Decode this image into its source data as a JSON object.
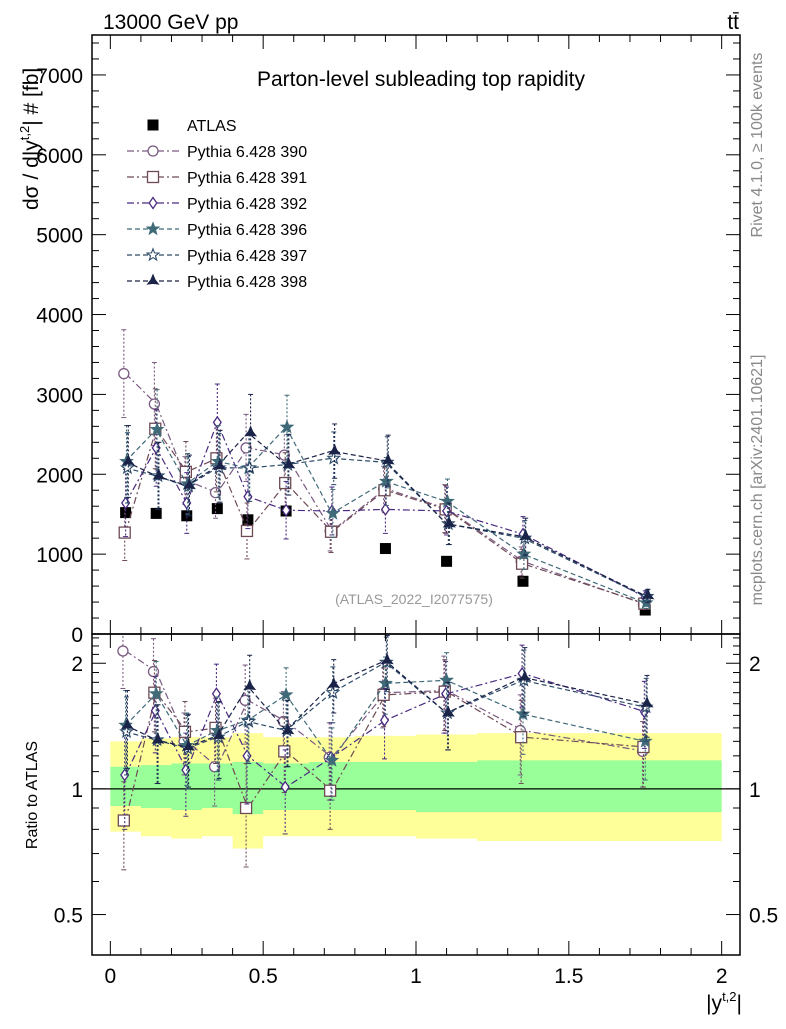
{
  "header": {
    "energy_label": "13000 GeV pp",
    "process_label": "tt̄"
  },
  "side_labels": {
    "rivet": "Rivet 4.1.0, ≥ 100k events",
    "mcplots": "mcplots.cern.ch [arXiv:2401.10621]"
  },
  "colors": {
    "ATLAS": "#000000",
    "s390": "#7a5a82",
    "s391": "#6e4a55",
    "s392": "#4a2a80",
    "s396": "#3f6a78",
    "s397": "#2c4a68",
    "s398": "#1a2348",
    "band_inner": "#99ff99",
    "band_outer": "#ffff99"
  },
  "chart_data": [
    {
      "type": "line",
      "panel": "main",
      "title": "Parton-level subleading top rapidity",
      "ylabel": "dσ / d|y^{t,2}| # [fb]",
      "ylabel_parts": {
        "main": "dσ / d|y",
        "sup": "t,2",
        "tail": "| # [fb]"
      },
      "watermark": "(ATLAS_2022_I2077575)",
      "xlim": [
        -0.06,
        2.06
      ],
      "ylim": [
        0,
        7500
      ],
      "yticks": [
        0,
        1000,
        2000,
        3000,
        4000,
        5000,
        6000,
        7000
      ],
      "ytick_labels": [
        "0",
        "1000",
        "2000",
        "3000",
        "4000",
        "5000",
        "6000",
        "7000"
      ],
      "x": [
        0.05,
        0.15,
        0.25,
        0.35,
        0.45,
        0.575,
        0.725,
        0.9,
        1.1,
        1.35,
        1.75
      ],
      "series": [
        {
          "name": "ATLAS",
          "key": "ATLAS",
          "marker": "square-filled",
          "line": "none",
          "values": [
            1520,
            1510,
            1480,
            1570,
            1430,
            1540,
            1290,
            1070,
            910,
            660,
            300
          ]
        },
        {
          "name": "Pythia 6.428 390",
          "key": "s390",
          "marker": "circle-open",
          "line": "dashdot",
          "values": [
            3260,
            2880,
            1920,
            1770,
            2330,
            2240,
            1290,
            1820,
            1570,
            910,
            370
          ],
          "err": [
            550,
            520,
            300,
            320,
            420,
            360,
            250,
            280,
            300,
            180,
            60
          ]
        },
        {
          "name": "Pythia 6.428 391",
          "key": "s391",
          "marker": "square-open",
          "line": "dashdot",
          "values": [
            1270,
            2570,
            2030,
            2200,
            1290,
            1890,
            1280,
            1800,
            1560,
            880,
            380
          ],
          "err": [
            350,
            500,
            380,
            420,
            350,
            380,
            260,
            280,
            300,
            180,
            70
          ]
        },
        {
          "name": "Pythia 6.428 392",
          "key": "s392",
          "marker": "diamond-open",
          "line": "dashdot",
          "values": [
            1640,
            2330,
            1640,
            2650,
            1720,
            1550,
            1540,
            1560,
            1540,
            1250,
            460
          ],
          "err": [
            420,
            480,
            380,
            480,
            400,
            360,
            300,
            300,
            300,
            220,
            80
          ]
        },
        {
          "name": "Pythia 6.428 396",
          "key": "s396",
          "marker": "star-filled",
          "line": "dashed",
          "values": [
            2160,
            2560,
            1880,
            2160,
            2080,
            2590,
            1510,
            1910,
            1660,
            1000,
            390
          ],
          "err": [
            450,
            500,
            380,
            450,
            420,
            400,
            300,
            300,
            280,
            190,
            70
          ]
        },
        {
          "name": "Pythia 6.428 397",
          "key": "s397",
          "marker": "star-open",
          "line": "dashed",
          "values": [
            2080,
            1980,
            1850,
            2080,
            2080,
            2120,
            2200,
            2150,
            1380,
            1200,
            470
          ],
          "err": [
            440,
            420,
            370,
            430,
            420,
            380,
            330,
            320,
            260,
            220,
            80
          ]
        },
        {
          "name": "Pythia 6.428 398",
          "key": "s398",
          "marker": "tri-down-filled",
          "line": "dashed",
          "values": [
            2160,
            1980,
            1860,
            2100,
            2520,
            2120,
            2290,
            2170,
            1380,
            1220,
            480
          ],
          "err": [
            450,
            420,
            380,
            450,
            480,
            380,
            340,
            320,
            260,
            230,
            80
          ]
        }
      ]
    },
    {
      "type": "line",
      "panel": "ratio",
      "ylabel": "Ratio to ATLAS",
      "xlabel": "|y^{t,2}|",
      "xlabel_parts": {
        "main": "|y",
        "sup": "t,2",
        "tail": "|"
      },
      "xlim": [
        -0.06,
        2.06
      ],
      "ylim": [
        0.4,
        2.35
      ],
      "scale": "log",
      "yticks": [
        0.5,
        1,
        2
      ],
      "ytick_labels": [
        "0.5",
        "1",
        "2"
      ],
      "xticks": [
        0,
        0.5,
        1,
        1.5,
        2
      ],
      "xtick_labels": [
        "0",
        "0.5",
        "1",
        "1.5",
        "2"
      ],
      "x": [
        0.05,
        0.15,
        0.25,
        0.35,
        0.45,
        0.575,
        0.725,
        0.9,
        1.1,
        1.35,
        1.75
      ],
      "band_edges": [
        0,
        0.1,
        0.2,
        0.3,
        0.4,
        0.5,
        0.65,
        0.8,
        1.0,
        1.2,
        1.5,
        2.0
      ],
      "band_inner": [
        [
          0.91,
          1.13
        ],
        [
          0.9,
          1.14
        ],
        [
          0.89,
          1.15
        ],
        [
          0.9,
          1.15
        ],
        [
          0.87,
          1.16
        ],
        [
          0.89,
          1.15
        ],
        [
          0.89,
          1.16
        ],
        [
          0.89,
          1.16
        ],
        [
          0.88,
          1.16
        ],
        [
          0.88,
          1.17
        ],
        [
          0.88,
          1.17
        ]
      ],
      "band_outer": [
        [
          0.79,
          1.3
        ],
        [
          0.77,
          1.32
        ],
        [
          0.76,
          1.33
        ],
        [
          0.77,
          1.33
        ],
        [
          0.72,
          1.36
        ],
        [
          0.77,
          1.33
        ],
        [
          0.77,
          1.33
        ],
        [
          0.77,
          1.34
        ],
        [
          0.76,
          1.35
        ],
        [
          0.75,
          1.36
        ],
        [
          0.75,
          1.36
        ]
      ],
      "series": [
        {
          "name": "Pythia 6.428 390",
          "key": "s390",
          "marker": "circle-open",
          "line": "dashdot",
          "values": [
            2.14,
            1.91,
            1.3,
            1.13,
            1.63,
            1.45,
            1.19,
            1.7,
            1.72,
            1.38,
            1.23
          ],
          "err": [
            0.4,
            0.38,
            0.22,
            0.22,
            0.35,
            0.26,
            0.25,
            0.3,
            0.36,
            0.3,
            0.22
          ]
        },
        {
          "name": "Pythia 6.428 391",
          "key": "s391",
          "marker": "square-open",
          "line": "dashdot",
          "values": [
            0.84,
            1.7,
            1.37,
            1.4,
            0.9,
            1.23,
            0.99,
            1.68,
            1.71,
            1.33,
            1.26
          ],
          "err": [
            0.2,
            0.33,
            0.25,
            0.25,
            0.25,
            0.25,
            0.19,
            0.27,
            0.33,
            0.3,
            0.25
          ]
        },
        {
          "name": "Pythia 6.428 392",
          "key": "s392",
          "marker": "diamond-open",
          "line": "dashdot",
          "values": [
            1.08,
            1.54,
            1.11,
            1.69,
            1.2,
            1.01,
            1.19,
            1.46,
            1.69,
            1.89,
            1.53
          ],
          "err": [
            0.28,
            0.32,
            0.25,
            0.3,
            0.28,
            0.23,
            0.25,
            0.28,
            0.33,
            0.32,
            0.28
          ]
        },
        {
          "name": "Pythia 6.428 396",
          "key": "s396",
          "marker": "star-filled",
          "line": "dashed",
          "values": [
            1.42,
            1.69,
            1.27,
            1.38,
            1.46,
            1.68,
            1.17,
            1.79,
            1.82,
            1.51,
            1.3
          ],
          "err": [
            0.3,
            0.33,
            0.25,
            0.28,
            0.3,
            0.27,
            0.23,
            0.28,
            0.3,
            0.3,
            0.25
          ]
        },
        {
          "name": "Pythia 6.428 397",
          "key": "s397",
          "marker": "star-open",
          "line": "dashed",
          "values": [
            1.37,
            1.31,
            1.25,
            1.33,
            1.45,
            1.38,
            1.7,
            2.01,
            1.52,
            1.82,
            1.57
          ],
          "err": [
            0.29,
            0.28,
            0.25,
            0.28,
            0.3,
            0.25,
            0.26,
            0.3,
            0.28,
            0.33,
            0.27
          ]
        },
        {
          "name": "Pythia 6.428 398",
          "key": "s398",
          "marker": "tri-down-filled",
          "line": "dashed",
          "values": [
            1.42,
            1.31,
            1.26,
            1.34,
            1.76,
            1.38,
            1.78,
            2.03,
            1.52,
            1.85,
            1.6
          ],
          "err": [
            0.3,
            0.28,
            0.25,
            0.28,
            0.33,
            0.25,
            0.26,
            0.3,
            0.28,
            0.33,
            0.27
          ]
        }
      ]
    }
  ]
}
